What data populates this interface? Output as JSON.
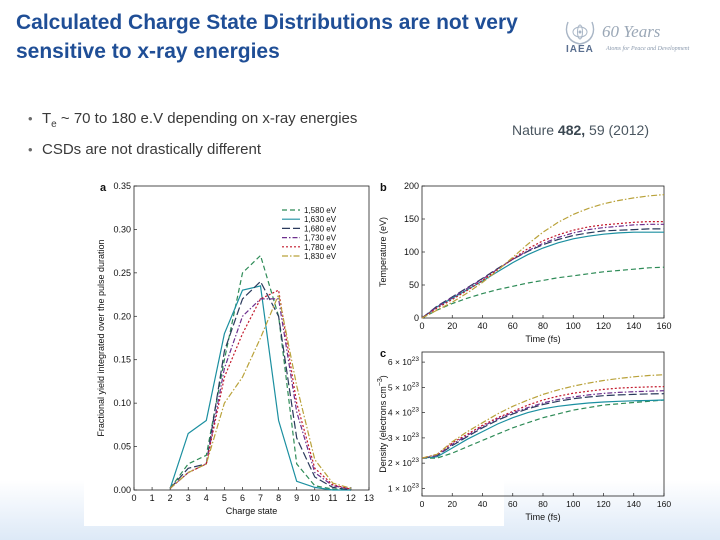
{
  "slide": {
    "title_line1": "Calculated Charge State Distributions are not very",
    "title_line2": "sensitive to  x-ray energies",
    "logo": {
      "years": "60 Years",
      "org": "IAEA",
      "tagline": "Atoms for Peace and Development"
    },
    "bullets": [
      {
        "pre": "T",
        "sub": "e",
        "post": " ~ 70 to 180 e.V  depending on x-ray energies"
      },
      {
        "pre": "CSDs are not drastically different",
        "sub": "",
        "post": ""
      }
    ],
    "reference": {
      "journal": "Nature ",
      "volume": "482,",
      "rest": " 59 (2012)"
    }
  },
  "colors": {
    "title": "#1f4e96",
    "series": [
      "#2e8b57",
      "#1b8fa0",
      "#2b3a5c",
      "#6d2f8e",
      "#c2182b",
      "#b9a23a"
    ]
  },
  "chart_data": [
    {
      "type": "line",
      "panel_letter": "a",
      "xlabel": "Charge state",
      "ylabel": "Fractional yield integrated over the pulse duration",
      "xticks": [
        0,
        1,
        2,
        3,
        4,
        5,
        6,
        7,
        8,
        9,
        10,
        11,
        12,
        13
      ],
      "yticks": [
        0.0,
        0.05,
        0.1,
        0.15,
        0.2,
        0.25,
        0.3,
        0.35
      ],
      "ytick_labels": [
        "0.00",
        "0.05",
        "0.10",
        "0.15",
        "0.20",
        "0.25",
        "0.30",
        "0.35"
      ],
      "xlim": [
        0,
        13
      ],
      "ylim": [
        0,
        0.35
      ],
      "legend_position": "top-right",
      "x": [
        2,
        3,
        4,
        5,
        6,
        7,
        8,
        9,
        10,
        11,
        12
      ],
      "series": [
        {
          "name": "1,580 eV",
          "values": [
            0.002,
            0.03,
            0.04,
            0.15,
            0.25,
            0.27,
            0.2,
            0.03,
            0.005,
            0.001,
            0.0
          ]
        },
        {
          "name": "1,630 eV",
          "values": [
            0.002,
            0.065,
            0.08,
            0.18,
            0.23,
            0.235,
            0.08,
            0.01,
            0.003,
            0.0,
            0.0
          ]
        },
        {
          "name": "1,680 eV",
          "values": [
            0.002,
            0.025,
            0.03,
            0.16,
            0.22,
            0.24,
            0.2,
            0.06,
            0.015,
            0.003,
            0.0
          ]
        },
        {
          "name": "1,730 eV",
          "values": [
            0.002,
            0.02,
            0.03,
            0.14,
            0.2,
            0.22,
            0.22,
            0.09,
            0.02,
            0.005,
            0.001
          ]
        },
        {
          "name": "1,780 eV",
          "values": [
            0.002,
            0.02,
            0.03,
            0.13,
            0.18,
            0.22,
            0.23,
            0.1,
            0.025,
            0.006,
            0.001
          ]
        },
        {
          "name": "1,830 eV",
          "values": [
            0.002,
            0.02,
            0.03,
            0.1,
            0.13,
            0.175,
            0.225,
            0.12,
            0.035,
            0.008,
            0.002
          ]
        }
      ]
    },
    {
      "type": "line",
      "panel_letter": "b",
      "xlabel": "Time (fs)",
      "ylabel": "Temperature (eV)",
      "xticks": [
        0,
        20,
        40,
        60,
        80,
        100,
        120,
        140,
        160
      ],
      "yticks": [
        0,
        50,
        100,
        150,
        200
      ],
      "ytick_labels": [
        "0",
        "50",
        "100",
        "150",
        "200"
      ],
      "xlim": [
        0,
        160
      ],
      "ylim": [
        0,
        200
      ],
      "x": [
        0,
        10,
        20,
        30,
        40,
        50,
        60,
        70,
        80,
        90,
        100,
        110,
        120,
        130,
        140,
        150,
        160
      ],
      "series": [
        {
          "name": "1,580 eV",
          "values": [
            0,
            12,
            22,
            30,
            37,
            43,
            48,
            53,
            57,
            61,
            64,
            67,
            70,
            72,
            74,
            76,
            77
          ]
        },
        {
          "name": "1,630 eV",
          "values": [
            0,
            17,
            30,
            43,
            56,
            70,
            84,
            96,
            106,
            114,
            120,
            124,
            127,
            129,
            130,
            130,
            130
          ]
        },
        {
          "name": "1,680 eV",
          "values": [
            0,
            18,
            32,
            46,
            60,
            75,
            89,
            101,
            111,
            119,
            125,
            129,
            132,
            133,
            134,
            135,
            135
          ]
        },
        {
          "name": "1,730 eV",
          "values": [
            0,
            17,
            31,
            45,
            59,
            74,
            89,
            102,
            113,
            122,
            129,
            134,
            137,
            139,
            141,
            142,
            142
          ]
        },
        {
          "name": "1,780 eV",
          "values": [
            0,
            15,
            28,
            42,
            57,
            73,
            90,
            105,
            117,
            126,
            133,
            138,
            141,
            143,
            145,
            146,
            146
          ]
        },
        {
          "name": "1,830 eV",
          "values": [
            0,
            12,
            24,
            38,
            54,
            72,
            92,
            112,
            130,
            145,
            157,
            166,
            173,
            178,
            182,
            185,
            187
          ]
        }
      ]
    },
    {
      "type": "line",
      "panel_letter": "c",
      "xlabel": "Time (fs)",
      "ylabel": "Density (electrons cm",
      "ylabel_sup": "−3",
      "ylabel_close": ")",
      "xticks": [
        0,
        20,
        40,
        60,
        80,
        100,
        120,
        140,
        160
      ],
      "yticks": [
        1,
        2,
        3,
        4,
        5,
        6
      ],
      "ytick_labels": [
        "1 × 10",
        "2 × 10",
        "3 × 10",
        "4 × 10",
        "5 × 10",
        "6 × 10"
      ],
      "ytick_exponent": "23",
      "xlim": [
        0,
        160
      ],
      "ylim": [
        0.7,
        6.4
      ],
      "x": [
        0,
        10,
        20,
        30,
        40,
        50,
        60,
        70,
        80,
        90,
        100,
        110,
        120,
        130,
        140,
        150,
        160
      ],
      "series": [
        {
          "name": "1,580 eV",
          "values": [
            2.2,
            2.2,
            2.4,
            2.65,
            2.9,
            3.15,
            3.4,
            3.6,
            3.8,
            3.95,
            4.1,
            4.2,
            4.3,
            4.35,
            4.4,
            4.45,
            4.5
          ]
        },
        {
          "name": "1,630 eV",
          "values": [
            2.2,
            2.25,
            2.6,
            2.95,
            3.25,
            3.55,
            3.8,
            4.0,
            4.15,
            4.25,
            4.32,
            4.38,
            4.42,
            4.45,
            4.47,
            4.48,
            4.5
          ]
        },
        {
          "name": "1,680 eV",
          "values": [
            2.2,
            2.3,
            2.7,
            3.05,
            3.4,
            3.7,
            3.95,
            4.15,
            4.32,
            4.45,
            4.55,
            4.62,
            4.67,
            4.7,
            4.72,
            4.74,
            4.75
          ]
        },
        {
          "name": "1,730 eV",
          "values": [
            2.2,
            2.3,
            2.75,
            3.1,
            3.45,
            3.75,
            4.0,
            4.2,
            4.38,
            4.52,
            4.62,
            4.7,
            4.76,
            4.8,
            4.83,
            4.85,
            4.87
          ]
        },
        {
          "name": "1,780 eV",
          "values": [
            2.2,
            2.35,
            2.8,
            3.15,
            3.5,
            3.8,
            4.05,
            4.3,
            4.5,
            4.65,
            4.77,
            4.85,
            4.92,
            4.97,
            5.0,
            5.02,
            5.03
          ]
        },
        {
          "name": "1,830 eV",
          "values": [
            2.2,
            2.35,
            2.85,
            3.25,
            3.6,
            3.95,
            4.25,
            4.5,
            4.72,
            4.9,
            5.05,
            5.17,
            5.27,
            5.35,
            5.42,
            5.47,
            5.5
          ]
        }
      ]
    }
  ]
}
